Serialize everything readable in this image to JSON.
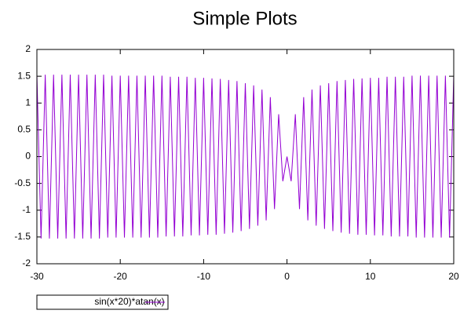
{
  "chart_data": {
    "type": "line",
    "title": "Simple Plots",
    "x": [
      -30,
      -29.5,
      -29,
      -28.5,
      -28,
      -27.5,
      -27,
      -26.5,
      -26,
      -25.5,
      -25,
      -24.5,
      -24,
      -23.5,
      -23,
      -22.5,
      -22,
      -21.5,
      -21,
      -20.5,
      -20,
      -19.5,
      -19,
      -18.5,
      -18,
      -17.5,
      -17,
      -16.5,
      -16,
      -15.5,
      -15,
      -14.5,
      -14,
      -13.5,
      -13,
      -12.5,
      -12,
      -11.5,
      -11,
      -10.5,
      -10,
      -9.5,
      -9,
      -8.5,
      -8,
      -7.5,
      -7,
      -6.5,
      -6,
      -5.5,
      -5,
      -4.5,
      -4,
      -3.5,
      -3,
      -2.5,
      -2,
      -1.5,
      -1,
      -0.5,
      0,
      0.5,
      1,
      1.5,
      2,
      2.5,
      3,
      3.5,
      4,
      4.5,
      5,
      5.5,
      6,
      6.5,
      7,
      7.5,
      8,
      8.5,
      9,
      9.5,
      10,
      10.5,
      11,
      11.5,
      12,
      12.5,
      13,
      13.5,
      14,
      14.5,
      15,
      15.5,
      16,
      16.5,
      17,
      17.5,
      18,
      18.5,
      19,
      19.5,
      20
    ],
    "series": [
      {
        "name": "sin(x*20)*atan(x)",
        "color": "#9400d3",
        "values": [
          1.53,
          -1.53,
          1.53,
          -1.53,
          1.53,
          -1.53,
          1.53,
          -1.53,
          1.53,
          -1.53,
          1.53,
          -1.53,
          1.53,
          -1.53,
          1.53,
          -1.53,
          1.53,
          -1.51,
          1.51,
          -1.51,
          1.51,
          -1.51,
          1.51,
          -1.51,
          1.51,
          -1.51,
          1.51,
          -1.51,
          1.51,
          -1.51,
          1.51,
          -1.49,
          1.49,
          -1.49,
          1.49,
          -1.49,
          1.49,
          -1.47,
          1.47,
          -1.47,
          1.47,
          -1.46,
          1.46,
          -1.46,
          1.45,
          -1.44,
          1.43,
          -1.42,
          1.41,
          -1.39,
          1.37,
          -1.35,
          1.33,
          -1.29,
          1.25,
          -1.19,
          1.11,
          -0.98,
          0.79,
          -0.46,
          0,
          -0.46,
          0.79,
          -0.98,
          1.11,
          -1.19,
          1.25,
          -1.29,
          1.33,
          -1.35,
          1.37,
          -1.39,
          1.41,
          -1.42,
          1.43,
          -1.44,
          1.45,
          -1.46,
          1.46,
          -1.46,
          1.47,
          -1.47,
          1.47,
          -1.47,
          1.49,
          -1.49,
          1.49,
          -1.49,
          1.49,
          -1.49,
          1.51,
          -1.51,
          1.51,
          -1.51,
          1.51,
          -1.51,
          1.51,
          -1.51,
          1.51,
          -1.51,
          1.51
        ]
      }
    ],
    "xlim": [
      -30,
      20
    ],
    "xticks": [
      -30,
      -20,
      -10,
      0,
      10,
      20
    ],
    "ylim": [
      -2,
      2
    ],
    "yticks": [
      -2,
      -1.5,
      -1,
      -0.5,
      0,
      0.5,
      1,
      1.5,
      2
    ],
    "legend": "below-left"
  }
}
